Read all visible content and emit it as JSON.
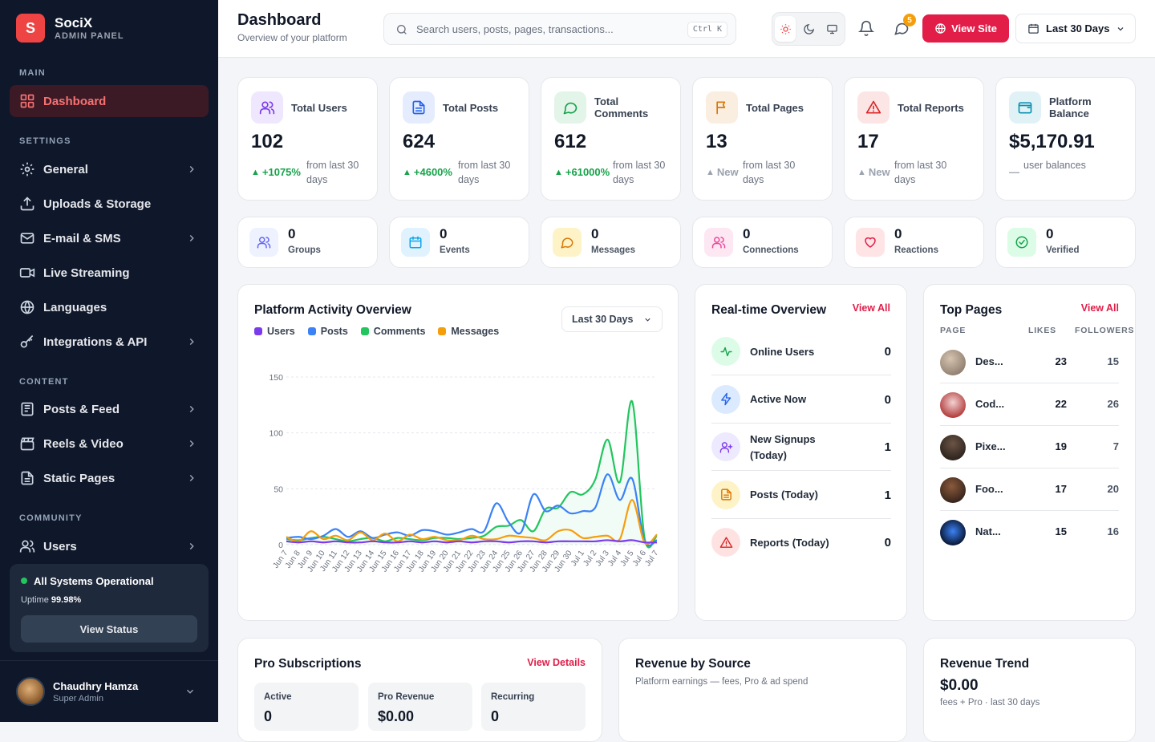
{
  "brand": {
    "logo_letter": "S",
    "name": "SociX",
    "subtitle": "ADMIN PANEL"
  },
  "sidebar": {
    "sections": [
      "MAIN",
      "SETTINGS",
      "CONTENT",
      "COMMUNITY"
    ],
    "items": [
      {
        "label": "Dashboard",
        "icon": "grid-icon",
        "active": true
      },
      {
        "label": "General",
        "icon": "gear-icon"
      },
      {
        "label": "Uploads & Storage",
        "icon": "upload-icon"
      },
      {
        "label": "E-mail & SMS",
        "icon": "mail-icon"
      },
      {
        "label": "Live Streaming",
        "icon": "video-icon"
      },
      {
        "label": "Languages",
        "icon": "globe-icon"
      },
      {
        "label": "Integrations & API",
        "icon": "key-icon"
      },
      {
        "label": "Posts & Feed",
        "icon": "newspaper-icon"
      },
      {
        "label": "Reels & Video",
        "icon": "clapperboard-icon"
      },
      {
        "label": "Static Pages",
        "icon": "file-icon"
      },
      {
        "label": "Users",
        "icon": "users-icon"
      }
    ],
    "status": {
      "title": "All Systems Operational",
      "uptime_label": "Uptime",
      "uptime_value": "99.98%",
      "button": "View Status"
    },
    "user": {
      "name": "Chaudhry Hamza",
      "role": "Super Admin"
    }
  },
  "header": {
    "title": "Dashboard",
    "subtitle": "Overview of your platform",
    "search_placeholder": "Search users, posts, pages, transactions...",
    "shortcut": "Ctrl K",
    "notification_badge": "5",
    "view_site": "View Site",
    "range": "Last 30 Days"
  },
  "stats": [
    {
      "label": "Total Users",
      "value": "102",
      "change": "+1075%",
      "note": "from last 30 days",
      "color": "#7c3aed",
      "trend": "up"
    },
    {
      "label": "Total Posts",
      "value": "624",
      "change": "+4600%",
      "note": "from last 30 days",
      "color": "#2563eb",
      "trend": "up"
    },
    {
      "label": "Total Comments",
      "value": "612",
      "change": "+61000%",
      "note": "from last 30 days",
      "color": "#16a34a",
      "trend": "up"
    },
    {
      "label": "Total Pages",
      "value": "13",
      "change": "New",
      "note": "from last 30 days",
      "color": "#d97706",
      "trend": "new"
    },
    {
      "label": "Total Reports",
      "value": "17",
      "change": "New",
      "note": "from last 30 days",
      "color": "#dc2626",
      "trend": "new"
    },
    {
      "label": "Platform Balance",
      "value": "$5,170.91",
      "change": "—",
      "note": "user balances",
      "color": "#0891b2",
      "trend": "flat"
    }
  ],
  "mini_stats": [
    {
      "label": "Groups",
      "value": "0",
      "icon": "users-icon"
    },
    {
      "label": "Events",
      "value": "0",
      "icon": "calendar-icon"
    },
    {
      "label": "Messages",
      "value": "0",
      "icon": "message-icon"
    },
    {
      "label": "Connections",
      "value": "0",
      "icon": "users-icon"
    },
    {
      "label": "Reactions",
      "value": "0",
      "icon": "heart-icon"
    },
    {
      "label": "Verified",
      "value": "0",
      "icon": "check-circle-icon"
    }
  ],
  "activity": {
    "title": "Platform Activity Overview",
    "range": "Last 30 Days"
  },
  "chart_data": {
    "type": "line",
    "x": [
      "Jun 7",
      "Jun 8",
      "Jun 9",
      "Jun 10",
      "Jun 11",
      "Jun 12",
      "Jun 13",
      "Jun 14",
      "Jun 15",
      "Jun 16",
      "Jun 17",
      "Jun 18",
      "Jun 19",
      "Jun 20",
      "Jun 21",
      "Jun 22",
      "Jun 23",
      "Jun 24",
      "Jun 25",
      "Jun 26",
      "Jun 27",
      "Jun 28",
      "Jun 29",
      "Jun 30",
      "Jul 1",
      "Jul 2",
      "Jul 3",
      "Jul 4",
      "Jul 5",
      "Jul 6",
      "Jul 7"
    ],
    "ylim": [
      0,
      150
    ],
    "yticks": [
      0,
      50,
      100,
      150
    ],
    "grid": true,
    "legend": "top-left",
    "series": [
      {
        "name": "Users",
        "color": "#7c3aed",
        "values": [
          3,
          2,
          3,
          2,
          3,
          2,
          2,
          3,
          2,
          2,
          3,
          2,
          3,
          2,
          3,
          2,
          3,
          3,
          2,
          3,
          3,
          2,
          3,
          3,
          3,
          3,
          4,
          3,
          4,
          2,
          2
        ]
      },
      {
        "name": "Posts",
        "color": "#3b82f6",
        "values": [
          6,
          7,
          5,
          8,
          14,
          7,
          12,
          6,
          9,
          11,
          8,
          13,
          12,
          9,
          11,
          14,
          12,
          37,
          20,
          11,
          45,
          30,
          35,
          28,
          30,
          33,
          63,
          40,
          59,
          3,
          4
        ]
      },
      {
        "name": "Comments",
        "color": "#22c55e",
        "values": [
          5,
          4,
          6,
          7,
          5,
          3,
          5,
          6,
          3,
          6,
          5,
          4,
          6,
          6,
          5,
          6,
          8,
          16,
          17,
          22,
          12,
          32,
          33,
          47,
          45,
          58,
          94,
          56,
          128,
          6,
          8
        ]
      },
      {
        "name": "Messages",
        "color": "#f59e0b",
        "values": [
          7,
          3,
          12,
          5,
          8,
          4,
          11,
          4,
          10,
          3,
          9,
          5,
          7,
          4,
          4,
          8,
          5,
          5,
          8,
          7,
          6,
          4,
          12,
          13,
          6,
          7,
          8,
          5,
          40,
          2,
          9
        ]
      }
    ]
  },
  "realtime": {
    "title": "Real-time Overview",
    "link": "View All",
    "rows": [
      {
        "label": "Online Users",
        "value": "0",
        "color": "#16a34a",
        "bg": "#dcfce7"
      },
      {
        "label": "Active Now",
        "value": "0",
        "color": "#2563eb",
        "bg": "#dbeafe"
      },
      {
        "label": "New Signups (Today)",
        "value": "1",
        "color": "#7c3aed",
        "bg": "#ede9fe"
      },
      {
        "label": "Posts (Today)",
        "value": "1",
        "color": "#d97706",
        "bg": "#fef3c7"
      },
      {
        "label": "Reports (Today)",
        "value": "0",
        "color": "#dc2626",
        "bg": "#fee2e2"
      }
    ]
  },
  "top_pages": {
    "title": "Top Pages",
    "link": "View All",
    "headers": [
      "PAGE",
      "LIKES",
      "FOLLOWERS"
    ],
    "rows": [
      {
        "name": "Des...",
        "likes": "23",
        "followers": "15"
      },
      {
        "name": "Cod...",
        "likes": "22",
        "followers": "26"
      },
      {
        "name": "Pixe...",
        "likes": "19",
        "followers": "7"
      },
      {
        "name": "Foo...",
        "likes": "17",
        "followers": "20"
      },
      {
        "name": "Nat...",
        "likes": "15",
        "followers": "16"
      }
    ]
  },
  "pro": {
    "title": "Pro Subscriptions",
    "link": "View Details",
    "boxes": [
      {
        "label": "Active",
        "value": "0"
      },
      {
        "label": "Pro Revenue",
        "value": "$0.00"
      },
      {
        "label": "Recurring",
        "value": "0"
      }
    ]
  },
  "revenue_source": {
    "title": "Revenue by Source",
    "subtitle": "Platform earnings — fees, Pro & ad spend"
  },
  "revenue_trend": {
    "title": "Revenue Trend",
    "value": "$0.00",
    "subtitle": "fees + Pro · last 30 days"
  }
}
